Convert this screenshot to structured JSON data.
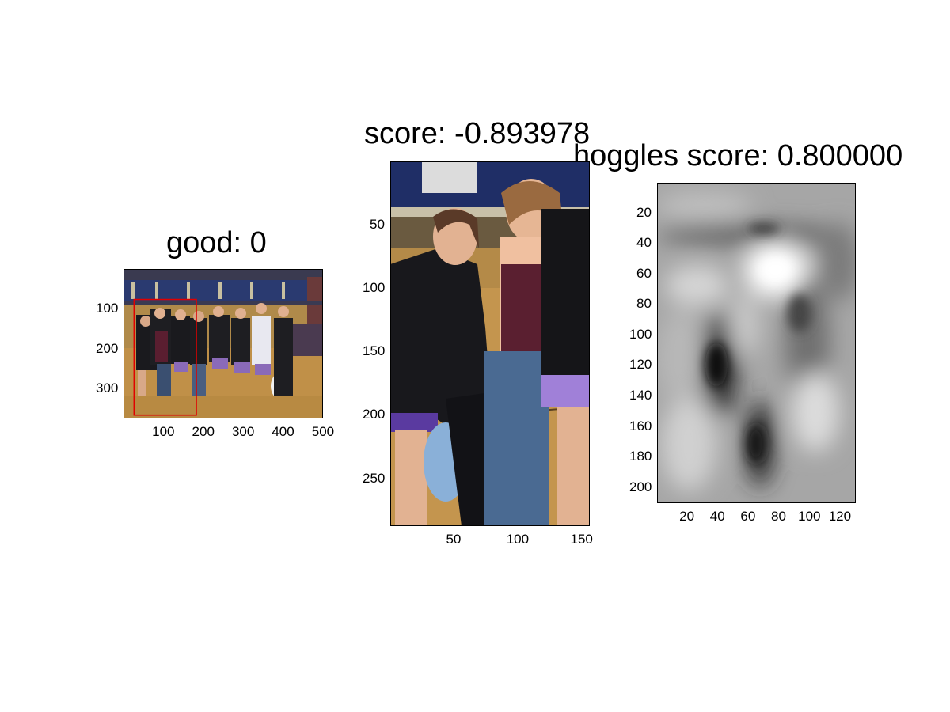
{
  "figure": {
    "panels": [
      {
        "id": "full-image",
        "title": "good: 0",
        "x_ticks": [
          {
            "value": 100,
            "label": "100"
          },
          {
            "value": 200,
            "label": "200"
          },
          {
            "value": 300,
            "label": "300"
          },
          {
            "value": 400,
            "label": "400"
          },
          {
            "value": 500,
            "label": "500"
          }
        ],
        "y_ticks": [
          {
            "value": 100,
            "label": "100"
          },
          {
            "value": 200,
            "label": "200"
          },
          {
            "value": 300,
            "label": "300"
          }
        ],
        "x_range": [
          0.5,
          500.5
        ],
        "y_range": [
          0.5,
          375.5
        ],
        "bbox_data": {
          "x1": 27,
          "y1": 77,
          "x2": 183,
          "y2": 367
        },
        "bbox_color": "#e00000"
      },
      {
        "id": "crop-image",
        "title": "score: -0.893978",
        "x_ticks": [
          {
            "value": 50,
            "label": "50"
          },
          {
            "value": 100,
            "label": "100"
          },
          {
            "value": 150,
            "label": "150"
          }
        ],
        "y_ticks": [
          {
            "value": 50,
            "label": "50"
          },
          {
            "value": 100,
            "label": "100"
          },
          {
            "value": 150,
            "label": "150"
          },
          {
            "value": 200,
            "label": "200"
          },
          {
            "value": 250,
            "label": "250"
          }
        ],
        "x_range": [
          0.5,
          156.5
        ],
        "y_range": [
          0.5,
          287.5
        ]
      },
      {
        "id": "hoggles-image",
        "title": "hoggles score: 0.800000",
        "x_ticks": [
          {
            "value": 20,
            "label": "20"
          },
          {
            "value": 40,
            "label": "40"
          },
          {
            "value": 60,
            "label": "60"
          },
          {
            "value": 80,
            "label": "80"
          },
          {
            "value": 100,
            "label": "100"
          },
          {
            "value": 120,
            "label": "120"
          }
        ],
        "y_ticks": [
          {
            "value": 20,
            "label": "20"
          },
          {
            "value": 40,
            "label": "40"
          },
          {
            "value": 60,
            "label": "60"
          },
          {
            "value": 80,
            "label": "80"
          },
          {
            "value": 100,
            "label": "100"
          },
          {
            "value": 120,
            "label": "120"
          },
          {
            "value": 140,
            "label": "140"
          },
          {
            "value": 160,
            "label": "160"
          },
          {
            "value": 180,
            "label": "180"
          },
          {
            "value": 200,
            "label": "200"
          }
        ],
        "x_range": [
          0.5,
          130.5
        ],
        "y_range": [
          0.5,
          210.5
        ]
      }
    ]
  }
}
